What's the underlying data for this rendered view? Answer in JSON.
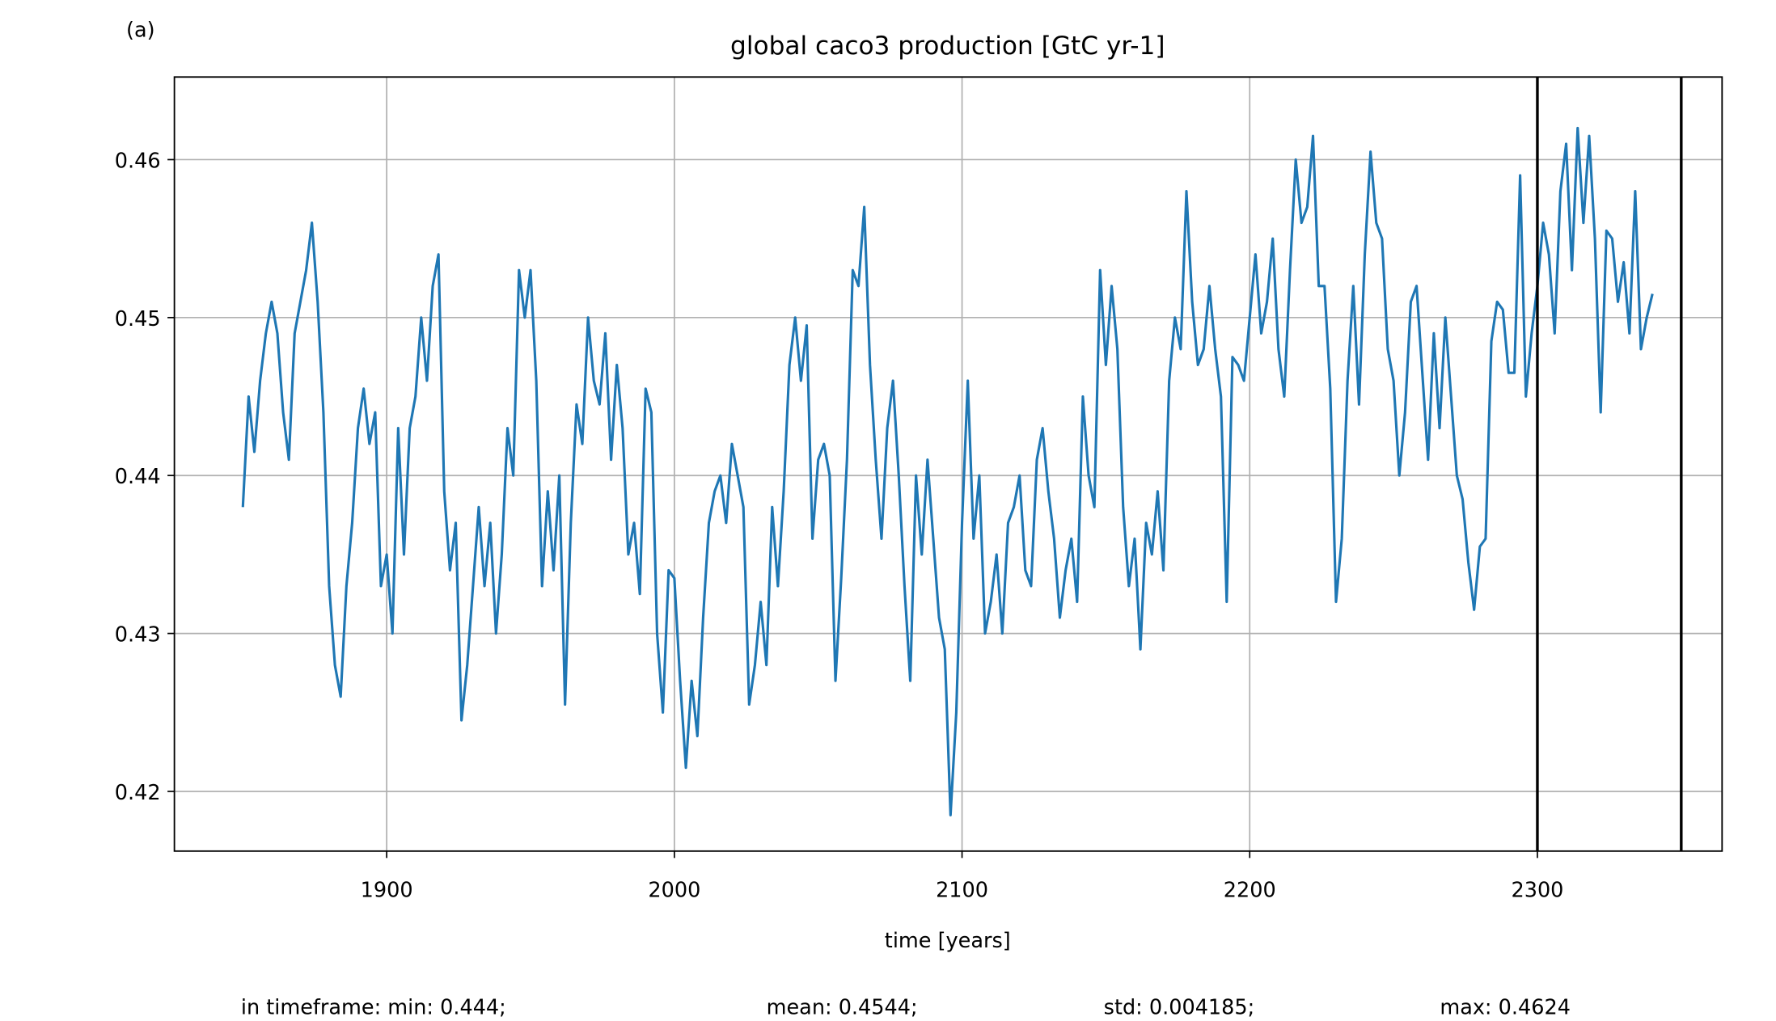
{
  "chart_data": {
    "type": "line",
    "panel_label": "(a)",
    "title": "global caco3 production [GtC yr-1]",
    "x_label": "time [years]",
    "stats": [
      "in timeframe: min: 0.444;",
      "mean: 0.4544;",
      "std: 0.004185;",
      "max: 0.4624"
    ],
    "xlim": [
      1826.2,
      2364.2
    ],
    "ylim": [
      0.41622,
      0.46523
    ],
    "xticks": [
      1900,
      2000,
      2100,
      2200,
      2300
    ],
    "yticks": [
      0.42,
      0.43,
      0.44,
      0.45,
      0.46
    ],
    "grid": true,
    "vlines": [
      2300,
      2350
    ],
    "x": [
      1850,
      1852,
      1854,
      1856,
      1858,
      1860,
      1862,
      1864,
      1866,
      1868,
      1870,
      1872,
      1874,
      1876,
      1878,
      1880,
      1882,
      1884,
      1886,
      1888,
      1890,
      1892,
      1894,
      1896,
      1898,
      1900,
      1902,
      1904,
      1906,
      1908,
      1910,
      1912,
      1914,
      1916,
      1918,
      1920,
      1922,
      1924,
      1926,
      1928,
      1930,
      1932,
      1934,
      1936,
      1938,
      1940,
      1942,
      1944,
      1946,
      1948,
      1950,
      1952,
      1954,
      1956,
      1958,
      1960,
      1962,
      1964,
      1966,
      1968,
      1970,
      1972,
      1974,
      1976,
      1978,
      1980,
      1982,
      1984,
      1986,
      1988,
      1990,
      1992,
      1994,
      1996,
      1998,
      2000,
      2002,
      2004,
      2006,
      2008,
      2010,
      2012,
      2014,
      2016,
      2018,
      2020,
      2022,
      2024,
      2026,
      2028,
      2030,
      2032,
      2034,
      2036,
      2038,
      2040,
      2042,
      2044,
      2046,
      2048,
      2050,
      2052,
      2054,
      2056,
      2058,
      2060,
      2062,
      2064,
      2066,
      2068,
      2070,
      2072,
      2074,
      2076,
      2078,
      2080,
      2082,
      2084,
      2086,
      2088,
      2090,
      2092,
      2094,
      2096,
      2098,
      2100,
      2102,
      2104,
      2106,
      2108,
      2110,
      2112,
      2114,
      2116,
      2118,
      2120,
      2122,
      2124,
      2126,
      2128,
      2130,
      2132,
      2134,
      2136,
      2138,
      2140,
      2142,
      2144,
      2146,
      2148,
      2150,
      2152,
      2154,
      2156,
      2158,
      2160,
      2162,
      2164,
      2166,
      2168,
      2170,
      2172,
      2174,
      2176,
      2178,
      2180,
      2182,
      2184,
      2186,
      2188,
      2190,
      2192,
      2194,
      2196,
      2198,
      2200,
      2202,
      2204,
      2206,
      2208,
      2210,
      2212,
      2214,
      2216,
      2218,
      2220,
      2222,
      2224,
      2226,
      2228,
      2230,
      2232,
      2234,
      2236,
      2238,
      2240,
      2242,
      2244,
      2246,
      2248,
      2250,
      2252,
      2254,
      2256,
      2258,
      2260,
      2262,
      2264,
      2266,
      2268,
      2270,
      2272,
      2274,
      2276,
      2278,
      2280,
      2282,
      2284,
      2286,
      2288,
      2290,
      2292,
      2294,
      2296,
      2298,
      2300,
      2302,
      2304,
      2306,
      2308,
      2310,
      2312,
      2314,
      2316,
      2318,
      2320,
      2322,
      2324,
      2326,
      2328,
      2330,
      2332,
      2334,
      2336,
      2338,
      2340
    ],
    "series": [
      {
        "color": "#1f77b4",
        "values": [
          0.438,
          0.445,
          0.4415,
          0.446,
          0.449,
          0.451,
          0.449,
          0.444,
          0.441,
          0.449,
          0.451,
          0.453,
          0.456,
          0.451,
          0.444,
          0.433,
          0.428,
          0.426,
          0.433,
          0.437,
          0.443,
          0.4455,
          0.442,
          0.444,
          0.433,
          0.435,
          0.43,
          0.443,
          0.435,
          0.443,
          0.445,
          0.45,
          0.446,
          0.452,
          0.454,
          0.439,
          0.434,
          0.437,
          0.4245,
          0.428,
          0.433,
          0.438,
          0.433,
          0.437,
          0.43,
          0.435,
          0.443,
          0.44,
          0.453,
          0.45,
          0.453,
          0.446,
          0.433,
          0.439,
          0.434,
          0.44,
          0.4255,
          0.437,
          0.4445,
          0.442,
          0.45,
          0.446,
          0.4445,
          0.449,
          0.441,
          0.447,
          0.443,
          0.435,
          0.437,
          0.4325,
          0.4455,
          0.444,
          0.43,
          0.425,
          0.434,
          0.4335,
          0.427,
          0.4215,
          0.427,
          0.4235,
          0.431,
          0.437,
          0.439,
          0.44,
          0.437,
          0.442,
          0.44,
          0.438,
          0.4255,
          0.428,
          0.432,
          0.428,
          0.438,
          0.433,
          0.439,
          0.447,
          0.45,
          0.446,
          0.4495,
          0.436,
          0.441,
          0.442,
          0.44,
          0.427,
          0.4335,
          0.441,
          0.453,
          0.452,
          0.457,
          0.447,
          0.441,
          0.436,
          0.443,
          0.446,
          0.44,
          0.433,
          0.427,
          0.44,
          0.435,
          0.441,
          0.436,
          0.431,
          0.429,
          0.4185,
          0.425,
          0.437,
          0.446,
          0.436,
          0.44,
          0.43,
          0.432,
          0.435,
          0.43,
          0.437,
          0.438,
          0.44,
          0.434,
          0.433,
          0.441,
          0.443,
          0.439,
          0.436,
          0.431,
          0.434,
          0.436,
          0.432,
          0.445,
          0.44,
          0.438,
          0.453,
          0.447,
          0.452,
          0.448,
          0.438,
          0.433,
          0.436,
          0.429,
          0.437,
          0.435,
          0.439,
          0.434,
          0.446,
          0.45,
          0.448,
          0.458,
          0.451,
          0.447,
          0.448,
          0.452,
          0.448,
          0.445,
          0.432,
          0.4475,
          0.447,
          0.446,
          0.45,
          0.454,
          0.449,
          0.451,
          0.455,
          0.448,
          0.445,
          0.453,
          0.46,
          0.456,
          0.457,
          0.4615,
          0.452,
          0.452,
          0.4455,
          0.432,
          0.436,
          0.446,
          0.452,
          0.4445,
          0.454,
          0.4605,
          0.456,
          0.455,
          0.448,
          0.446,
          0.44,
          0.444,
          0.451,
          0.452,
          0.4465,
          0.441,
          0.449,
          0.443,
          0.45,
          0.445,
          0.44,
          0.4385,
          0.4345,
          0.4315,
          0.4355,
          0.436,
          0.4485,
          0.451,
          0.4505,
          0.4465,
          0.4465,
          0.459,
          0.445,
          0.449,
          0.452,
          0.456,
          0.454,
          0.449,
          0.458,
          0.461,
          0.453,
          0.462,
          0.456,
          0.4615,
          0.455,
          0.444,
          0.4555,
          0.455,
          0.451,
          0.4535,
          0.449,
          0.458,
          0.448,
          0.45,
          0.4515
        ]
      }
    ]
  }
}
